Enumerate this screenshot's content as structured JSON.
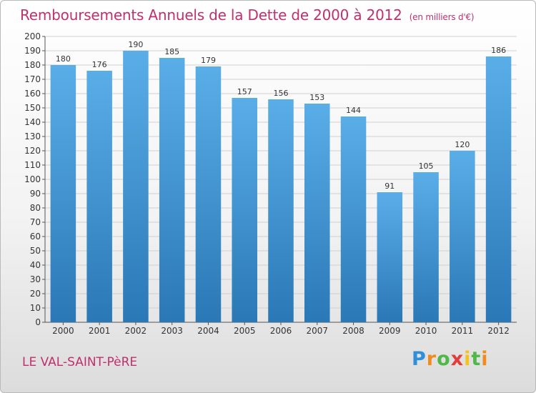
{
  "title": "Remboursements Annuels de la Dette de 2000 à 2012",
  "subtitle": "(en milliers d'€)",
  "commune": "LE VAL-SAINT-PèRE",
  "logo": {
    "parts": [
      "P",
      "r",
      "o",
      "x",
      "i",
      "t",
      "i"
    ]
  },
  "colors": {
    "bar_top": "#5aaee8",
    "bar_bottom": "#2a78b6",
    "title": "#c0306e",
    "grid": "#d0d0d0"
  },
  "chart_data": {
    "type": "bar",
    "title": "Remboursements Annuels de la Dette de 2000 à 2012",
    "subtitle": "(en milliers d'€)",
    "xlabel": "",
    "ylabel": "",
    "categories": [
      "2000",
      "2001",
      "2002",
      "2003",
      "2004",
      "2005",
      "2006",
      "2007",
      "2008",
      "2009",
      "2010",
      "2011",
      "2012"
    ],
    "values": [
      180,
      176,
      190,
      185,
      179,
      157,
      156,
      153,
      144,
      91,
      105,
      120,
      186
    ],
    "ylim": [
      0,
      200
    ],
    "ytick_step": 10,
    "grid": true,
    "legend": "none"
  }
}
